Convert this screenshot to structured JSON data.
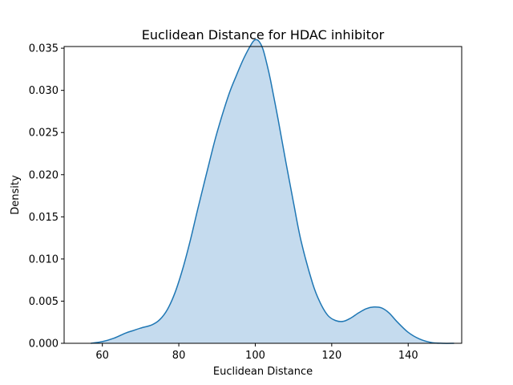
{
  "chart_data": {
    "type": "area",
    "title": "Euclidean Distance for HDAC inhibitor",
    "xlabel": "Euclidean Distance",
    "ylabel": "Density",
    "xlim": [
      50,
      154
    ],
    "ylim": [
      0,
      0.0352
    ],
    "xticks": [
      "60",
      "80",
      "100",
      "120",
      "140"
    ],
    "yticks": [
      "0.000",
      "0.005",
      "0.010",
      "0.015",
      "0.020",
      "0.025",
      "0.030",
      "0.035"
    ],
    "grid": false,
    "legend": "none",
    "series": [
      {
        "color": "#1f77b4",
        "fill_color": "#c5dbee",
        "x": [
          57,
          60,
          63,
          66,
          68,
          70,
          73,
          75,
          77,
          79,
          81,
          83,
          85,
          88,
          90,
          93,
          95,
          97,
          99,
          100,
          101,
          102,
          103,
          104,
          106,
          108,
          110,
          112,
          115,
          117,
          119,
          121,
          123,
          125,
          127,
          129,
          131,
          133,
          135,
          137,
          140,
          143,
          146,
          149,
          152
        ],
        "y": [
          0.0,
          0.0002,
          0.0006,
          0.0012,
          0.0015,
          0.0018,
          0.0022,
          0.0028,
          0.004,
          0.006,
          0.0088,
          0.0122,
          0.016,
          0.0215,
          0.025,
          0.0294,
          0.0317,
          0.0338,
          0.0355,
          0.036,
          0.0358,
          0.0349,
          0.0332,
          0.0312,
          0.0265,
          0.0215,
          0.0167,
          0.0121,
          0.0071,
          0.0048,
          0.0033,
          0.0027,
          0.0026,
          0.003,
          0.0036,
          0.0041,
          0.0043,
          0.0042,
          0.0036,
          0.0026,
          0.0013,
          0.0005,
          0.0001,
          0.0,
          0.0
        ]
      }
    ]
  }
}
